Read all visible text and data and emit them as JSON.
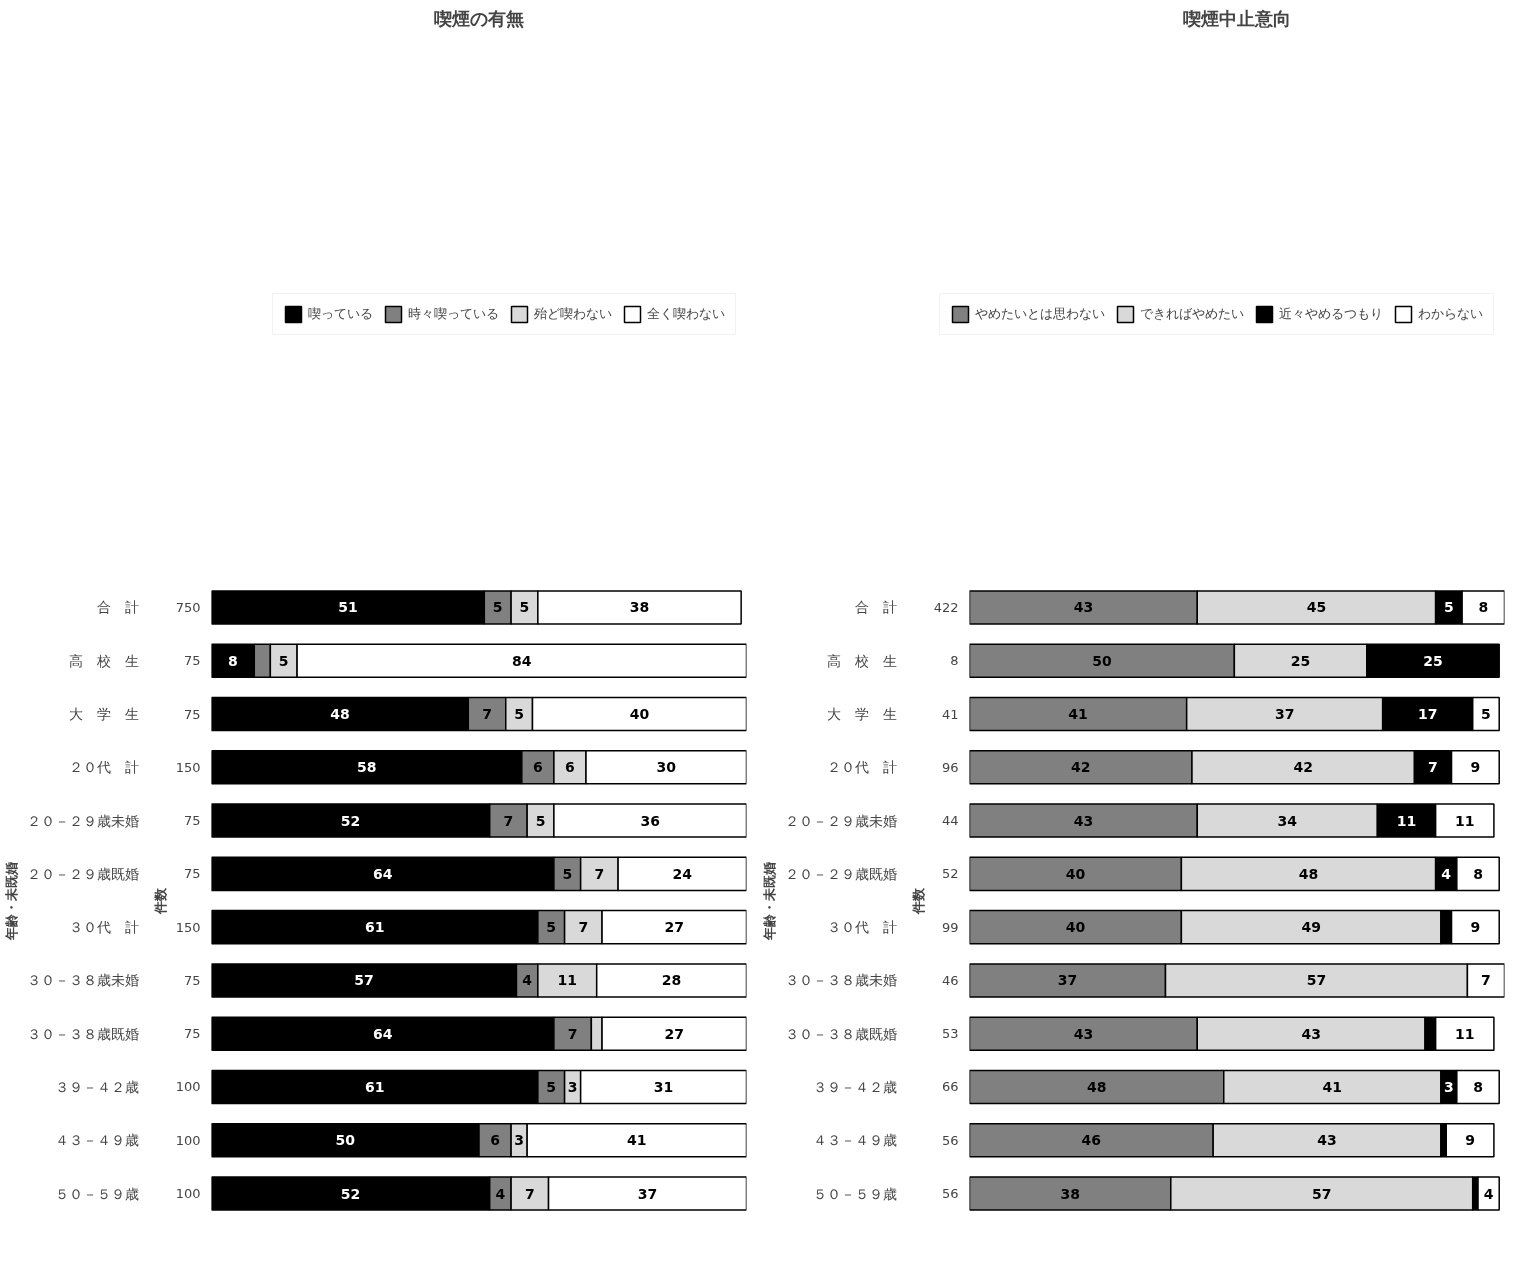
{
  "chart_data": [
    {
      "type": "bar",
      "orientation": "horizontal",
      "stacked": true,
      "legend": "top",
      "title": "喫煙の有無",
      "ylabel": "年齢・未既婚",
      "y2label": "件数",
      "categories": [
        "合　計",
        "高　校　生",
        "大　学　生",
        "２０代　計",
        "２０－２９歳未婚",
        "２０－２９歳既婚",
        "３０代　計",
        "３０－３８歳未婚",
        "３０－３８歳既婚",
        "３９－４２歳",
        "４３－４９歳",
        "５０－５９歳"
      ],
      "y2_categories": [
        "750",
        "75",
        "75",
        "150",
        "75",
        "75",
        "150",
        "75",
        "75",
        "100",
        "100",
        "100"
      ],
      "series": [
        {
          "name": "喫っている",
          "color": "#000000",
          "values": [
            51,
            8,
            48,
            58,
            52,
            64,
            61,
            57,
            64,
            61,
            50,
            52
          ],
          "value_labels": [
            "51",
            "8",
            "48",
            "58",
            "52",
            "64",
            "61",
            "57",
            "64",
            "61",
            "50",
            "52"
          ]
        },
        {
          "name": "時々喫っている",
          "color": "#808080",
          "values": [
            5,
            3,
            7,
            6,
            7,
            5,
            5,
            4,
            7,
            5,
            6,
            4
          ],
          "value_labels": [
            "5",
            null,
            "7",
            "6",
            "7",
            "5",
            "5",
            "4",
            "7",
            "5",
            "6",
            "4"
          ]
        },
        {
          "name": "殆ど喫わない",
          "color": "#d9d9d9",
          "values": [
            5,
            5,
            5,
            6,
            5,
            7,
            7,
            11,
            2,
            3,
            3,
            7
          ],
          "value_labels": [
            "5",
            "5",
            "5",
            "6",
            "5",
            "7",
            "7",
            "11",
            null,
            "3",
            "3",
            "7"
          ]
        },
        {
          "name": "全く喫わない",
          "color": "#ffffff",
          "values": [
            38,
            84,
            40,
            30,
            36,
            24,
            27,
            28,
            27,
            31,
            41,
            37
          ],
          "value_labels": [
            "38",
            "84",
            "40",
            "30",
            "36",
            "24",
            "27",
            "28",
            "27",
            "31",
            "41",
            "37"
          ]
        }
      ]
    },
    {
      "type": "bar",
      "orientation": "horizontal",
      "stacked": true,
      "legend": "top",
      "title": "喫煙中止意向",
      "ylabel": "年齢・未既婚",
      "y2label": "件数",
      "categories": [
        "合　計",
        "高　校　生",
        "大　学　生",
        "２０代　計",
        "２０－２９歳未婚",
        "２０－２９歳既婚",
        "３０代　計",
        "３０－３８歳未婚",
        "３０－３８歳既婚",
        "３９－４２歳",
        "４３－４９歳",
        "５０－５９歳"
      ],
      "y2_categories": [
        "422",
        "8",
        "41",
        "96",
        "44",
        "52",
        "99",
        "46",
        "53",
        "66",
        "56",
        "56"
      ],
      "series": [
        {
          "name": "やめたいとは思わない",
          "color": "#808080",
          "values": [
            43,
            50,
            41,
            42,
            43,
            40,
            40,
            37,
            43,
            48,
            46,
            38
          ],
          "value_labels": [
            "43",
            "50",
            "41",
            "42",
            "43",
            "40",
            "40",
            "37",
            "43",
            "48",
            "46",
            "38"
          ]
        },
        {
          "name": "できればやめたい",
          "color": "#d9d9d9",
          "values": [
            45,
            25,
            37,
            42,
            34,
            48,
            49,
            57,
            43,
            41,
            43,
            57
          ],
          "value_labels": [
            "45",
            "25",
            "37",
            "42",
            "34",
            "48",
            "49",
            "57",
            "43",
            "41",
            "43",
            "57"
          ]
        },
        {
          "name": "近々やめるつもり",
          "color": "#000000",
          "values": [
            5,
            25,
            17,
            7,
            11,
            4,
            2,
            null,
            2,
            3,
            1,
            1
          ],
          "value_labels": [
            "5",
            "25",
            "17",
            "7",
            "11",
            "4",
            null,
            null,
            null,
            "3",
            null,
            null
          ]
        },
        {
          "name": "わからない",
          "color": "#ffffff",
          "values": [
            8,
            null,
            5,
            9,
            11,
            8,
            9,
            7,
            11,
            8,
            9,
            4
          ],
          "value_labels": [
            "8",
            null,
            "5",
            "9",
            "11",
            "8",
            "9",
            "7",
            "11",
            "8",
            "9",
            "4"
          ]
        }
      ]
    }
  ]
}
